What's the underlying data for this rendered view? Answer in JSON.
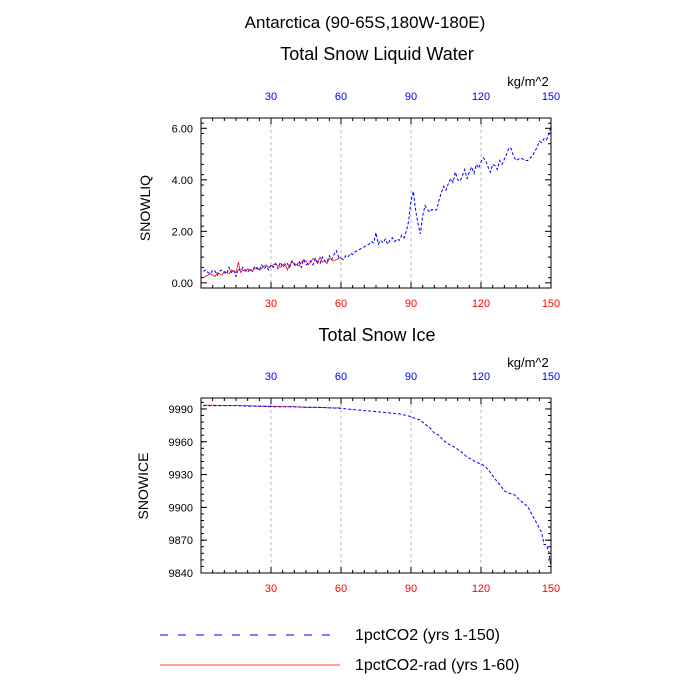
{
  "title": "Antarctica (90-65S,180W-180E)",
  "colors": {
    "series_blue": "#0000ff",
    "series_red": "#ff0000",
    "axis": "#000000",
    "grid": "#999999"
  },
  "legend": {
    "entries": [
      {
        "label": "1pctCO2 (yrs 1-150)",
        "color": "#0000ff",
        "style": "dashed"
      },
      {
        "label": "1pctCO2-rad (yrs 1-60)",
        "color": "#ff0000",
        "style": "solid"
      }
    ]
  },
  "chart_data": [
    {
      "type": "line",
      "title": "Total Snow Liquid Water",
      "ylabel": "SNOWLIQ",
      "units": "kg/m^2",
      "xlim": [
        0,
        150
      ],
      "ylim": [
        -0.2,
        6.4
      ],
      "xticks": [
        30,
        60,
        90,
        120,
        150
      ],
      "xtick_labels_bottom": [
        "30",
        "60",
        "90",
        "120",
        "150"
      ],
      "xtick_labels_top": [
        "30",
        "60",
        "90",
        "120",
        "150"
      ],
      "yticks": [
        0,
        2,
        4,
        6
      ],
      "ytick_labels": [
        "0.00",
        "2.00",
        "4.00",
        "6.00"
      ],
      "grid": "vertical dashed at x ticks",
      "series": [
        {
          "name": "1pctCO2 (yrs 1-150)",
          "x": [
            1,
            2,
            3,
            4,
            5,
            6,
            7,
            8,
            9,
            10,
            11,
            12,
            13,
            14,
            15,
            16,
            17,
            18,
            19,
            20,
            21,
            22,
            23,
            24,
            25,
            26,
            27,
            28,
            29,
            30,
            31,
            32,
            33,
            34,
            35,
            36,
            37,
            38,
            39,
            40,
            41,
            42,
            43,
            44,
            45,
            46,
            47,
            48,
            49,
            50,
            51,
            52,
            53,
            54,
            55,
            56,
            57,
            58,
            59,
            60,
            61,
            62,
            63,
            64,
            65,
            66,
            67,
            68,
            69,
            70,
            71,
            72,
            73,
            74,
            75,
            76,
            77,
            78,
            79,
            80,
            81,
            82,
            83,
            84,
            85,
            86,
            87,
            88,
            89,
            90,
            91,
            92,
            93,
            94,
            95,
            96,
            97,
            98,
            99,
            100,
            101,
            102,
            103,
            104,
            105,
            106,
            107,
            108,
            109,
            110,
            111,
            112,
            113,
            114,
            115,
            116,
            117,
            118,
            119,
            120,
            121,
            122,
            123,
            124,
            125,
            126,
            127,
            128,
            129,
            130,
            131,
            132,
            133,
            134,
            135,
            136,
            137,
            138,
            139,
            140,
            141,
            142,
            143,
            144,
            145,
            146,
            147,
            148,
            149,
            150
          ],
          "values": [
            0.45,
            0.5,
            0.4,
            0.35,
            0.5,
            0.45,
            0.3,
            0.45,
            0.5,
            0.4,
            0.35,
            0.6,
            0.4,
            0.5,
            0.25,
            0.55,
            0.45,
            0.6,
            0.5,
            0.4,
            0.55,
            0.45,
            0.65,
            0.55,
            0.5,
            0.7,
            0.55,
            0.65,
            0.5,
            0.7,
            0.6,
            0.75,
            0.55,
            0.8,
            0.6,
            0.7,
            0.75,
            0.6,
            0.85,
            0.7,
            0.65,
            0.85,
            0.6,
            0.9,
            0.7,
            0.75,
            0.85,
            0.7,
            0.95,
            0.8,
            0.75,
            1.0,
            0.85,
            0.8,
            1.05,
            0.9,
            1.1,
            1.25,
            1.0,
            0.95,
            0.9,
            1.05,
            1.0,
            1.15,
            1.1,
            1.2,
            1.25,
            1.3,
            1.35,
            1.4,
            1.45,
            1.5,
            1.6,
            1.55,
            1.95,
            1.5,
            1.65,
            1.55,
            1.7,
            1.5,
            1.65,
            1.75,
            1.6,
            1.7,
            1.65,
            1.85,
            1.75,
            2.0,
            2.4,
            3.2,
            3.55,
            2.8,
            2.3,
            1.9,
            2.6,
            3.0,
            2.85,
            2.75,
            2.85,
            2.8,
            2.85,
            3.2,
            3.5,
            3.75,
            3.6,
            3.85,
            4.05,
            3.9,
            4.3,
            4.0,
            3.95,
            4.15,
            4.4,
            4.05,
            4.3,
            4.5,
            4.25,
            4.6,
            4.45,
            4.7,
            4.85,
            4.75,
            4.5,
            4.3,
            4.6,
            4.55,
            4.4,
            4.75,
            4.6,
            4.8,
            5.0,
            5.25,
            5.2,
            4.9,
            4.75,
            4.8,
            4.85,
            4.8,
            4.75,
            4.75,
            4.85,
            4.9,
            5.1,
            5.25,
            5.5,
            5.45,
            5.6,
            5.55,
            5.75,
            6.1
          ]
        },
        {
          "name": "1pctCO2-rad (yrs 1-60)",
          "x": [
            1,
            2,
            3,
            4,
            5,
            6,
            7,
            8,
            9,
            10,
            11,
            12,
            13,
            14,
            15,
            16,
            17,
            18,
            19,
            20,
            21,
            22,
            23,
            24,
            25,
            26,
            27,
            28,
            29,
            30,
            31,
            32,
            33,
            34,
            35,
            36,
            37,
            38,
            39,
            40,
            41,
            42,
            43,
            44,
            45,
            46,
            47,
            48,
            49,
            50,
            51,
            52,
            53,
            54,
            55,
            56,
            57,
            58,
            59,
            60
          ],
          "values": [
            0.2,
            0.25,
            0.3,
            0.35,
            0.3,
            0.25,
            0.4,
            0.35,
            0.3,
            0.45,
            0.4,
            0.35,
            0.5,
            0.45,
            0.4,
            0.8,
            0.4,
            0.5,
            0.45,
            0.55,
            0.5,
            0.45,
            0.55,
            0.6,
            0.5,
            0.55,
            0.65,
            0.7,
            0.6,
            0.65,
            0.7,
            0.75,
            0.65,
            0.6,
            0.7,
            0.75,
            0.5,
            0.7,
            0.8,
            0.75,
            0.7,
            0.65,
            0.8,
            0.9,
            0.85,
            0.7,
            0.8,
            0.95,
            0.9,
            0.75,
            1.0,
            0.8,
            0.85,
            0.75,
            0.95,
            0.9,
            0.85,
            0.9,
            0.95,
            1.0
          ]
        }
      ]
    },
    {
      "type": "line",
      "title": "Total Snow Ice",
      "ylabel": "SNOWICE",
      "units": "kg/m^2",
      "xlim": [
        0,
        150
      ],
      "ylim": [
        9840,
        10000
      ],
      "xticks": [
        30,
        60,
        90,
        120,
        150
      ],
      "xtick_labels_bottom": [
        "30",
        "60",
        "90",
        "120",
        "150"
      ],
      "xtick_labels_top": [
        "30",
        "60",
        "90",
        "120",
        "150"
      ],
      "yticks": [
        9840,
        9870,
        9900,
        9930,
        9960,
        9990
      ],
      "ytick_labels": [
        "9840",
        "9870",
        "9900",
        "9930",
        "9960",
        "9990"
      ],
      "grid": "vertical dashed at x ticks",
      "series": [
        {
          "name": "1pctCO2 (yrs 1-150)",
          "x": [
            1,
            5,
            10,
            15,
            20,
            25,
            30,
            35,
            40,
            45,
            50,
            55,
            60,
            65,
            70,
            75,
            80,
            85,
            90,
            92,
            94,
            96,
            98,
            100,
            102,
            104,
            106,
            108,
            110,
            112,
            114,
            116,
            118,
            120,
            122,
            124,
            126,
            128,
            130,
            132,
            134,
            136,
            138,
            140,
            142,
            144,
            146,
            147,
            148,
            149,
            150
          ],
          "values": [
            9993,
            9993,
            9993,
            9993,
            9992.5,
            9992.5,
            9992,
            9992,
            9992,
            9991.5,
            9991.5,
            9991,
            9990.5,
            9989.5,
            9988.5,
            9987.5,
            9986.5,
            9985.5,
            9983,
            9981,
            9980,
            9976,
            9973,
            9968,
            9966,
            9961,
            9958,
            9956,
            9953,
            9950,
            9946,
            9944,
            9941,
            9940,
            9937,
            9932,
            9926,
            9921,
            9915,
            9913,
            9912,
            9908,
            9904,
            9901,
            9893,
            9885,
            9877,
            9866,
            9866,
            9860,
            9845
          ]
        },
        {
          "name": "1pctCO2-rad (yrs 1-60)",
          "x": [
            1,
            5,
            10,
            15,
            20,
            25,
            30,
            35,
            40,
            45,
            50,
            55,
            60
          ],
          "values": [
            9993.5,
            9993.5,
            9993,
            9993,
            9993,
            9992.5,
            9992.5,
            9992,
            9992,
            9991.5,
            9991.5,
            9991,
            9991
          ]
        }
      ]
    }
  ]
}
